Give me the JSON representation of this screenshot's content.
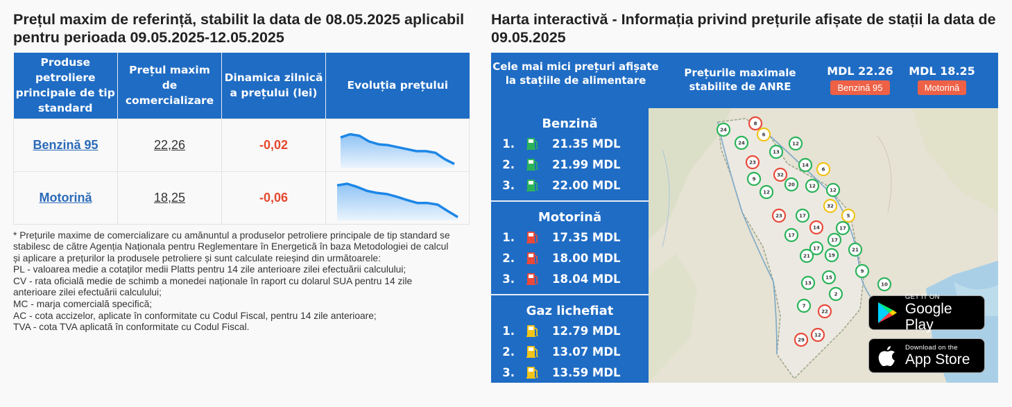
{
  "left": {
    "title": "Prețul maxim de referință, stabilit la data de 08.05.2025 aplicabil pentru perioada 09.05.2025-12.05.2025",
    "table": {
      "headers": [
        "Produse petroliere principale de tip standard",
        "Prețul maxim de comercializare",
        "Dinamica zilnică a prețului (lei)",
        "Evoluția prețului"
      ],
      "rows": [
        {
          "name": "Benzină 95",
          "price": "22,26",
          "delta": "-0,02",
          "trend": [
            0.72,
            0.8,
            0.76,
            0.62,
            0.55,
            0.53,
            0.48,
            0.43,
            0.38,
            0.38,
            0.34,
            0.18,
            0.06
          ]
        },
        {
          "name": "Motorină",
          "price": "18,25",
          "delta": "-0,06",
          "trend": [
            0.84,
            0.88,
            0.8,
            0.7,
            0.65,
            0.62,
            0.55,
            0.47,
            0.4,
            0.4,
            0.36,
            0.2,
            0.05
          ]
        }
      ]
    },
    "notes": [
      "* Prețurile maxime de comercializare cu amănuntul a produselor petroliere principale de tip standard se stabilesc de către Agenția Naționala pentru Reglementare în Energetică în baza Metodologiei de calcul și aplicare a prețurilor la produsele petroliere și sunt calculate reieșind din următoarele:",
      "PL - valoarea medie a cotaților medii Platts pentru 14 zile anterioare zilei efectuării calculului;",
      "CV - rata oficială medie de schimb a monedei naționale în raport cu dolarul SUA pentru 14 zile anterioare zilei efectuării calculului;",
      "MC - marja comercială specifică;",
      "AC - cota accizelor, aplicate în conformitate cu Codul Fiscal, pentru 14 zile anterioare;",
      "TVA - cota TVA aplicată în conformitate cu Codul Fiscal."
    ]
  },
  "right": {
    "title": "Harta interactivă - Informația privind prețurile afișate de stații la data de 09.05.2025",
    "banner": {
      "lowest_label": "Cele mai mici prețuri afișate la stațiile de alimentare",
      "max_label": "Prețurile maximale stabilite de ANRE",
      "max_prices": [
        {
          "value": "MDL 22.26",
          "fuel": "Benzină 95"
        },
        {
          "value": "MDL 18.25",
          "fuel": "Motorină"
        }
      ]
    },
    "fuels": [
      {
        "name": "Benzină",
        "color": "#2bb35a",
        "prices": [
          "21.35 MDL",
          "21.99 MDL",
          "22.00 MDL"
        ]
      },
      {
        "name": "Motorină",
        "color": "#e8493a",
        "prices": [
          "17.35 MDL",
          "18.00 MDL",
          "18.04 MDL"
        ]
      },
      {
        "name": "Gaz lichefiat",
        "color": "#f2c318",
        "prices": [
          "12.79 MDL",
          "13.07 MDL",
          "13.59 MDL"
        ]
      }
    ],
    "ranks": [
      "1.",
      "2.",
      "3."
    ],
    "map_markers": [
      "24",
      "8",
      "6",
      "24",
      "13",
      "12",
      "23",
      "14",
      "6",
      "32",
      "9",
      "20",
      "12",
      "12",
      "12",
      "32",
      "23",
      "17",
      "5",
      "17",
      "14",
      "17",
      "17",
      "17",
      "21",
      "21",
      "19",
      "9",
      "13",
      "15",
      "10",
      "2",
      "22",
      "7",
      "12",
      "29"
    ],
    "stores": {
      "google": {
        "small": "GET IT ON",
        "big": "Google Play"
      },
      "apple": {
        "small": "Download on the",
        "big": "App Store"
      }
    }
  }
}
